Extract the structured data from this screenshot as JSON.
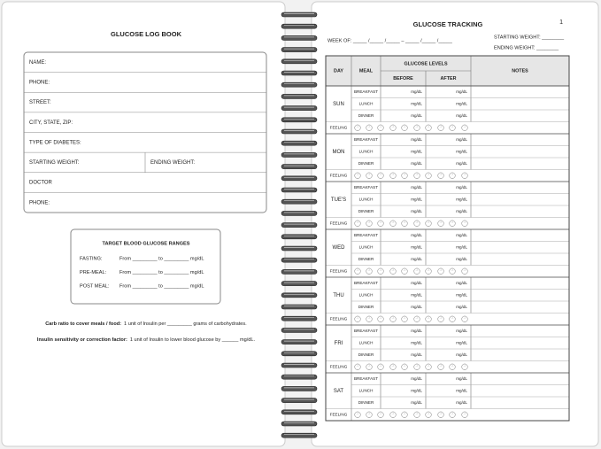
{
  "left_page": {
    "title": "GLUCOSE LOG BOOK",
    "fields": [
      [
        "NAME:"
      ],
      [
        "PHONE:"
      ],
      [
        "STREET:"
      ],
      [
        "CITY, STATE, ZIP:"
      ],
      [
        "TYPE OF DIABETES:"
      ],
      [
        "STARTING WEIGHT:",
        "ENDING WEIGHT:"
      ],
      [
        "DOCTOR"
      ],
      [
        "PHONE:"
      ]
    ],
    "target_ranges": {
      "title": "TARGET BLOOD GLUCOSE RANGES",
      "rows": [
        {
          "label": "FASTING:",
          "range": "From _________ to _________ mg/dL"
        },
        {
          "label": "PRE-MEAL:",
          "range": "From _________ to _________ mg/dL"
        },
        {
          "label": "POST MEAL:",
          "range": "From _________ to _________ mg/dL"
        }
      ]
    },
    "notes": [
      {
        "bold": "Carb ratio to cover meals / food:",
        "text": "1 unit of Insulin per _________ grams of carbohydrates."
      },
      {
        "bold": "Insulin sensitivity or correction factor:",
        "text": "1 unit of Insulin to lower blood glucose by ______ mg/dL."
      }
    ]
  },
  "right_page": {
    "title": "GLUCOSE TRACKING",
    "page_number": 1,
    "week_of": "WEEK OF: _____ /_____ /_____ – _____ /_____ /_____",
    "starting_weight": "STARTING WEIGHT: ________",
    "ending_weight": "ENDING WEIGHT: ________",
    "table": {
      "headers": {
        "day": "DAY",
        "meal": "MEAL",
        "glucose_levels": "GLUCOSE LEVELS",
        "before": "BEFORE",
        "after": "AFTER",
        "notes": "NOTES"
      },
      "days": [
        "SUN",
        "MON",
        "TUE'S",
        "WED",
        "THU",
        "FRI",
        "SAT"
      ],
      "meals": [
        "BREAKFAST",
        "LUNCH",
        "DINNER"
      ],
      "unit": "mg/dL",
      "feeling": "FEELING"
    }
  }
}
